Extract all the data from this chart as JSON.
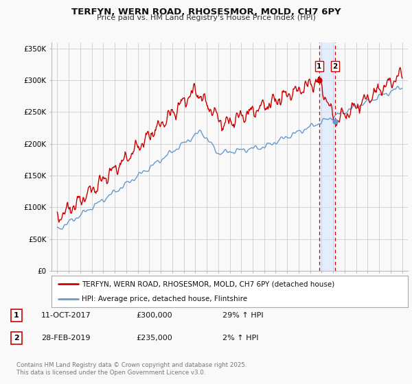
{
  "title": "TERFYN, WERN ROAD, RHOSESMOR, MOLD, CH7 6PY",
  "subtitle": "Price paid vs. HM Land Registry's House Price Index (HPI)",
  "legend_line1": "TERFYN, WERN ROAD, RHOSESMOR, MOLD, CH7 6PY (detached house)",
  "legend_line2": "HPI: Average price, detached house, Flintshire",
  "transaction1_date": "11-OCT-2017",
  "transaction1_price": "£300,000",
  "transaction1_hpi": "29% ↑ HPI",
  "transaction2_date": "28-FEB-2019",
  "transaction2_price": "£235,000",
  "transaction2_hpi": "2% ↑ HPI",
  "footer": "Contains HM Land Registry data © Crown copyright and database right 2025.\nThis data is licensed under the Open Government Licence v3.0.",
  "red_color": "#cc0000",
  "blue_color": "#6699cc",
  "background_color": "#f9f9f9",
  "grid_color": "#cccccc",
  "transaction1_x": 2017.79,
  "transaction2_x": 2019.16,
  "transaction1_y": 300000,
  "transaction2_y": 235000,
  "ylim": [
    0,
    360000
  ],
  "xlim": [
    1994.5,
    2025.5
  ]
}
